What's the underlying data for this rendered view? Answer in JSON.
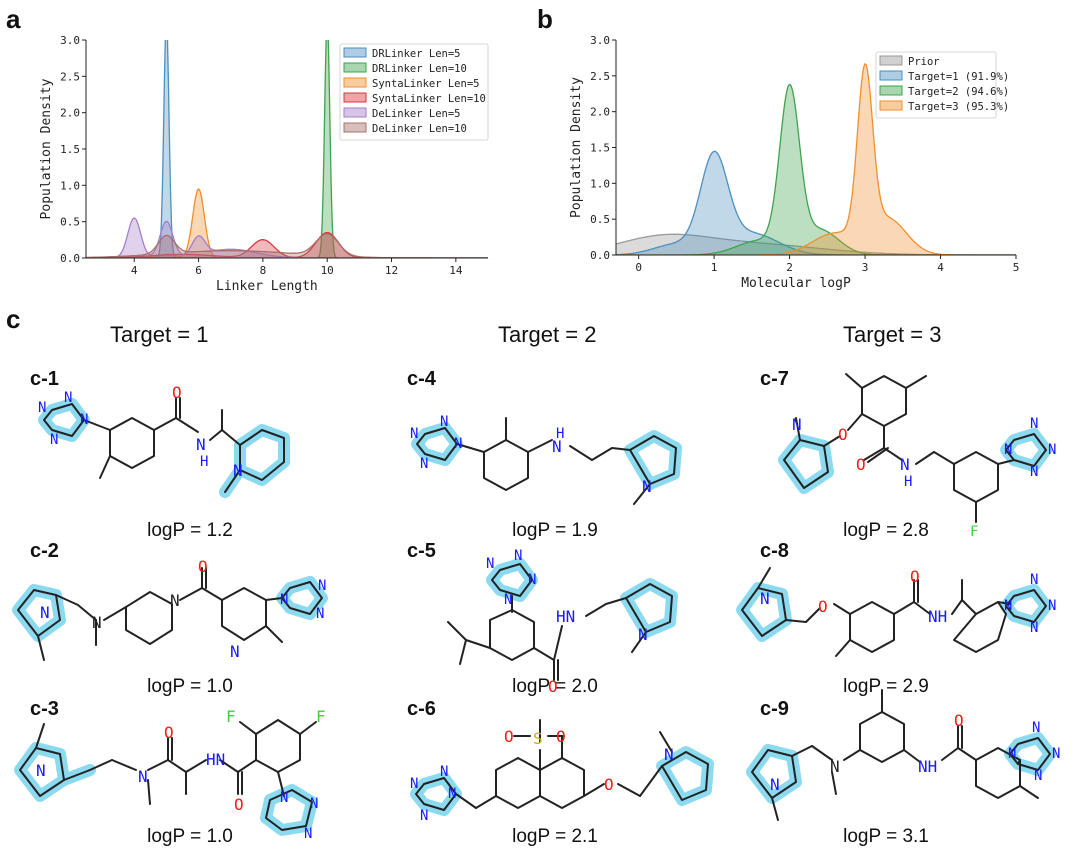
{
  "panels": {
    "a": "a",
    "b": "b",
    "c": "c"
  },
  "chart_data": [
    {
      "type": "area",
      "panel": "a",
      "xlabel": "Linker Length",
      "ylabel": "Population Density",
      "xlim": [
        2.5,
        15
      ],
      "ylim": [
        0,
        3.0
      ],
      "xticks": [
        4,
        6,
        8,
        10,
        12,
        14
      ],
      "yticks": [
        0.0,
        0.5,
        1.0,
        1.5,
        2.0,
        2.5,
        3.0
      ],
      "legend_position": "top-right",
      "series": [
        {
          "name": "DRLinker Len=5",
          "color": "#4c8fc1",
          "peaks": [
            [
              5,
              3.3,
              0.08
            ]
          ]
        },
        {
          "name": "DRLinker Len=10",
          "color": "#3fa34d",
          "peaks": [
            [
              10,
              3.3,
              0.08
            ]
          ]
        },
        {
          "name": "SyntaLinker Len=5",
          "color": "#f28e2b",
          "peaks": [
            [
              6,
              0.95,
              0.18
            ],
            [
              5,
              0.05,
              0.3
            ]
          ]
        },
        {
          "name": "SyntaLinker Len=10",
          "color": "#d9363e",
          "peaks": [
            [
              8,
              0.25,
              0.35
            ],
            [
              10,
              0.35,
              0.35
            ],
            [
              5.5,
              0.05,
              1.0
            ]
          ]
        },
        {
          "name": "DeLinker Len=5",
          "color": "#a57ec9",
          "peaks": [
            [
              4,
              0.55,
              0.2
            ],
            [
              5,
              0.5,
              0.2
            ],
            [
              6,
              0.25,
              0.2
            ],
            [
              7,
              0.12,
              0.8
            ]
          ]
        },
        {
          "name": "DeLinker Len=10",
          "color": "#a9706a",
          "peaks": [
            [
              5,
              0.25,
              0.25
            ],
            [
              10,
              0.3,
              0.35
            ],
            [
              7,
              0.1,
              2.0
            ]
          ]
        }
      ]
    },
    {
      "type": "area",
      "panel": "b",
      "xlabel": "Molecular   logP",
      "ylabel": "Population Density",
      "xlim": [
        -0.3,
        5
      ],
      "ylim": [
        0,
        3.0
      ],
      "xticks": [
        0,
        1,
        2,
        3,
        4,
        5
      ],
      "yticks": [
        0.0,
        0.5,
        1.0,
        1.5,
        2.0,
        2.5,
        3.0
      ],
      "legend_position": "top-right",
      "series": [
        {
          "name": "Prior",
          "color": "#999999",
          "peaks": [
            [
              0.3,
              0.22,
              0.6
            ],
            [
              1.5,
              0.15,
              0.9
            ]
          ]
        },
        {
          "name": "Target=1 (91.9%)",
          "color": "#4c8fc1",
          "peaks": [
            [
              1.0,
              1.3,
              0.18
            ],
            [
              1.5,
              0.3,
              0.35
            ],
            [
              0.5,
              0.15,
              0.3
            ]
          ]
        },
        {
          "name": "Target=2 (94.6%)",
          "color": "#3fa34d",
          "peaks": [
            [
              2.0,
              2.2,
              0.13
            ],
            [
              2.4,
              0.35,
              0.25
            ],
            [
              1.6,
              0.2,
              0.3
            ]
          ]
        },
        {
          "name": "Target=3 (95.3%)",
          "color": "#f28e2b",
          "peaks": [
            [
              3.0,
              2.3,
              0.1
            ],
            [
              3.3,
              0.5,
              0.25
            ],
            [
              2.6,
              0.3,
              0.3
            ]
          ]
        }
      ]
    }
  ],
  "targets": [
    "Target = 1",
    "Target = 2",
    "Target = 3"
  ],
  "molecules": [
    {
      "id": "c-1",
      "logp": "logP = 1.2"
    },
    {
      "id": "c-2",
      "logp": "logP = 1.0"
    },
    {
      "id": "c-3",
      "logp": "logP = 1.0"
    },
    {
      "id": "c-4",
      "logp": "logP = 1.9"
    },
    {
      "id": "c-5",
      "logp": "logP = 2.0"
    },
    {
      "id": "c-6",
      "logp": "logP = 2.1"
    },
    {
      "id": "c-7",
      "logp": "logP = 2.8"
    },
    {
      "id": "c-8",
      "logp": "logP = 2.9"
    },
    {
      "id": "c-9",
      "logp": "logP = 3.1"
    }
  ],
  "atoms": {
    "N": "N",
    "H": "H",
    "O": "O",
    "F": "F",
    "S": "S",
    "NH": "NH",
    "HN": "HN"
  },
  "colors": {
    "highlight": "#7fd6ee",
    "bond": "#222222",
    "nitrogen": "#1a1aff",
    "oxygen": "#ff1a1a",
    "fluorine": "#44cc44",
    "sulfur": "#c8b400"
  }
}
